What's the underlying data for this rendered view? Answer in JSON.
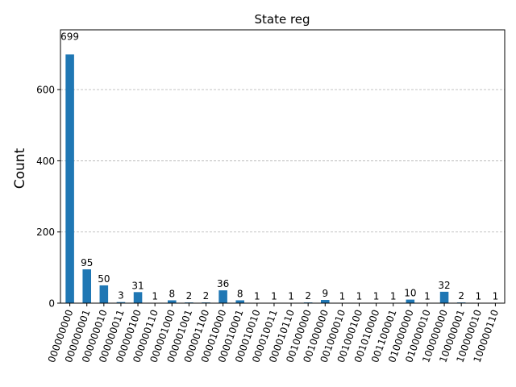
{
  "chart_data": {
    "type": "bar",
    "title": "State reg",
    "xlabel": "",
    "ylabel": "Count",
    "ylim": [
      0,
      768
    ],
    "yticks": [
      0,
      200,
      400,
      600
    ],
    "grid": "y dashed",
    "bar_color": "#1f77b4",
    "categories": [
      "000000000",
      "000000001",
      "000000010",
      "000000011",
      "000000100",
      "000000110",
      "000001000",
      "000001001",
      "000001100",
      "000010000",
      "000010001",
      "000010010",
      "000010011",
      "000010110",
      "001000000",
      "001000000",
      "001000010",
      "001000100",
      "001010000",
      "001100001",
      "010000000",
      "010000010",
      "100000000",
      "100000001",
      "100000010",
      "100000110"
    ],
    "values": [
      699,
      95,
      50,
      3,
      31,
      1,
      8,
      2,
      2,
      36,
      8,
      1,
      1,
      1,
      2,
      9,
      1,
      1,
      1,
      1,
      10,
      1,
      32,
      2,
      1,
      1
    ]
  }
}
